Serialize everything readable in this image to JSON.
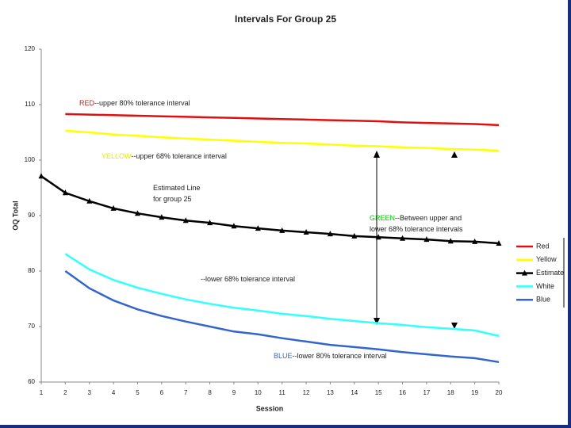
{
  "chart_data": {
    "type": "line",
    "title": "Intervals For Group 25",
    "x_label": "Session",
    "y_label": "OQ Total",
    "x": [
      1,
      2,
      3,
      4,
      5,
      6,
      7,
      8,
      9,
      10,
      11,
      12,
      13,
      14,
      15,
      16,
      17,
      18,
      19,
      20
    ],
    "xlim": [
      1,
      20
    ],
    "xticks": [
      1,
      2,
      3,
      4,
      5,
      6,
      7,
      8,
      9,
      10,
      11,
      12,
      13,
      14,
      15,
      16,
      17,
      18,
      19,
      20
    ],
    "ylim": [
      60,
      120
    ],
    "yticks": [
      60,
      70,
      80,
      90,
      100,
      110,
      120
    ],
    "legend": "right",
    "series": [
      {
        "name": "Red",
        "color": "#e01010",
        "values": [
          null,
          108.3,
          108.2,
          108.1,
          108.0,
          107.9,
          107.8,
          107.7,
          107.6,
          107.5,
          107.4,
          107.3,
          107.2,
          107.1,
          107.0,
          106.8,
          106.7,
          106.6,
          106.5,
          106.3
        ]
      },
      {
        "name": "Yellow",
        "color": "#ffff00",
        "values": [
          null,
          105.3,
          105.0,
          104.6,
          104.4,
          104.1,
          103.9,
          103.7,
          103.5,
          103.3,
          103.1,
          103.0,
          102.8,
          102.6,
          102.5,
          102.3,
          102.2,
          102.0,
          101.9,
          101.7
        ]
      },
      {
        "name": "Estimate",
        "color": "#000000",
        "marker": "triangle",
        "values": [
          97.1,
          94.1,
          92.6,
          91.3,
          90.4,
          89.7,
          89.1,
          88.7,
          88.1,
          87.7,
          87.3,
          87.0,
          86.7,
          86.3,
          86.1,
          85.9,
          85.7,
          85.4,
          85.3,
          85.0
        ]
      },
      {
        "name": "White",
        "color": "#33ffff",
        "values": [
          null,
          83.1,
          80.3,
          78.4,
          77.0,
          75.9,
          74.9,
          74.1,
          73.4,
          72.9,
          72.3,
          71.9,
          71.4,
          71.0,
          70.6,
          70.3,
          69.9,
          69.6,
          69.3,
          68.3
        ]
      },
      {
        "name": "Blue",
        "color": "#3366cc",
        "values": [
          null,
          80.0,
          76.9,
          74.7,
          73.1,
          71.9,
          70.9,
          70.0,
          69.1,
          68.6,
          67.9,
          67.3,
          66.7,
          66.3,
          65.9,
          65.4,
          65.0,
          64.6,
          64.3,
          63.6
        ]
      }
    ],
    "annotations": [
      {
        "highlight": "RED",
        "color": "#e01010",
        "lines": [
          "--upper 80% tolerance interval"
        ]
      },
      {
        "highlight": "YELLOW",
        "color": "#e8e800",
        "lines": [
          "--upper 68% tolerance interval"
        ]
      },
      {
        "lines": [
          "Estimated Line",
          "for group 25"
        ]
      },
      {
        "highlight": "GREEN",
        "color": "#00cc00",
        "lines": [
          "--Between upper and",
          "lower 68% tolerance intervals"
        ]
      },
      {
        "lines": [
          "--lower 68% tolerance interval"
        ]
      },
      {
        "highlight": "BLUE",
        "color": "#3366cc",
        "lines": [
          "--lower 80% tolerance interval"
        ]
      }
    ]
  }
}
